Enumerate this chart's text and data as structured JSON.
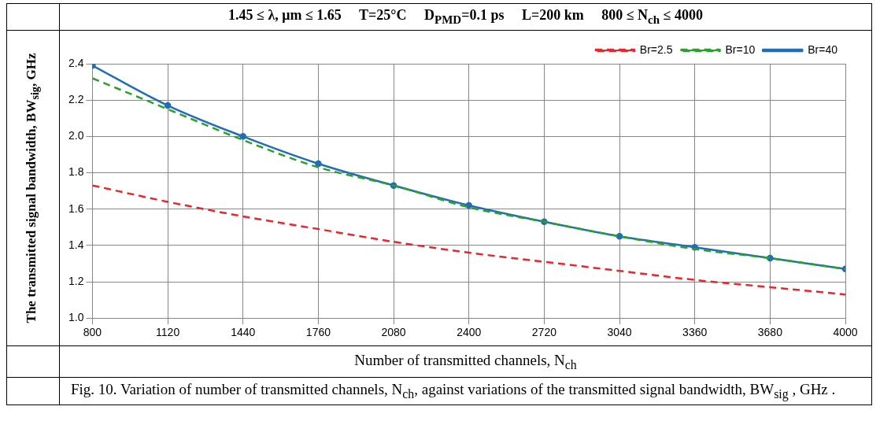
{
  "chart_data": {
    "type": "line",
    "title": "1.45 ≤ λ, μm ≤ 1.65     T=25°C     D$_{PMD}$=0.1 ps     L=200 km     800 ≤ N$_{ch}$ ≤ 4000",
    "xlabel": "Number of transmitted channels, N$_{ch}$",
    "ylabel": "The transmitted signal bandwidth, BW$_{sig}$, GHz",
    "annotations": [
      "Fig. 10. Variation of number of transmitted channels, N$_{ch}$, against variations of the transmitted signal bandwidth, BW$_{sig}$ , GHz ."
    ],
    "x": [
      800,
      1120,
      1440,
      1760,
      2080,
      2400,
      2720,
      3040,
      3360,
      3680,
      4000
    ],
    "series": [
      {
        "name": "Br=2.5",
        "color": "#e8262b",
        "line_style": "dashed",
        "marker": "none",
        "values": [
          1.73,
          1.64,
          1.56,
          1.49,
          1.42,
          1.36,
          1.31,
          1.26,
          1.21,
          1.17,
          1.13
        ]
      },
      {
        "name": "Br=10",
        "color": "#2ca02c",
        "line_style": "dashed",
        "marker": "none",
        "values": [
          2.32,
          2.15,
          1.98,
          1.83,
          1.73,
          1.61,
          1.53,
          1.45,
          1.38,
          1.33,
          1.27
        ]
      },
      {
        "name": "Br=40",
        "color": "#1f6fb5",
        "line_style": "solid",
        "marker": "circle",
        "values": [
          2.39,
          2.17,
          2.0,
          1.85,
          1.73,
          1.62,
          1.53,
          1.45,
          1.39,
          1.33,
          1.27
        ]
      }
    ],
    "xlim": [
      800,
      4000
    ],
    "xticks": [
      800,
      1120,
      1440,
      1760,
      2080,
      2400,
      2720,
      3040,
      3360,
      3680,
      4000
    ],
    "ylim": [
      1.0,
      2.4
    ],
    "yticks": [
      {
        "value": 1.0,
        "label": "1.0"
      },
      1.2,
      1.4,
      1.6,
      1.8,
      {
        "value": 2.0,
        "label": "2.0"
      },
      2.2,
      2.4
    ],
    "grid": true,
    "legend": "top right"
  }
}
